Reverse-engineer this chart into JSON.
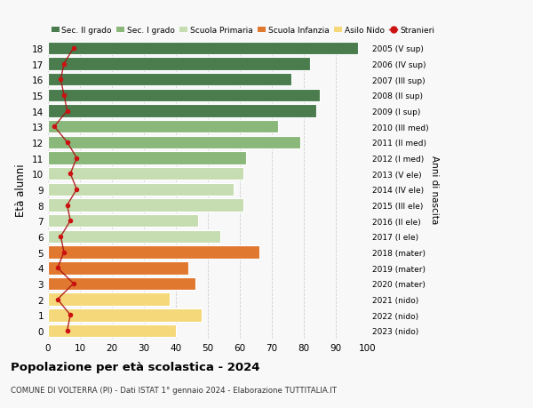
{
  "title": "Popolazione per età scolastica - 2024",
  "subtitle": "COMUNE DI VOLTERRA (PI) - Dati ISTAT 1° gennaio 2024 - Elaborazione TUTTITALIA.IT",
  "ylabel": "Età alunni",
  "right_ylabel": "Anni di nascita",
  "xlim": [
    0,
    100
  ],
  "xticks": [
    0,
    10,
    20,
    30,
    40,
    50,
    60,
    70,
    80,
    90,
    100
  ],
  "ages": [
    18,
    17,
    16,
    15,
    14,
    13,
    12,
    11,
    10,
    9,
    8,
    7,
    6,
    5,
    4,
    3,
    2,
    1,
    0
  ],
  "bar_values": [
    97,
    82,
    76,
    85,
    84,
    72,
    79,
    62,
    61,
    58,
    61,
    47,
    54,
    66,
    44,
    46,
    38,
    48,
    40
  ],
  "bar_colors": [
    "#4a7c4e",
    "#4a7c4e",
    "#4a7c4e",
    "#4a7c4e",
    "#4a7c4e",
    "#8ab87a",
    "#8ab87a",
    "#8ab87a",
    "#c5ddb0",
    "#c5ddb0",
    "#c5ddb0",
    "#c5ddb0",
    "#c5ddb0",
    "#e07830",
    "#e07830",
    "#e07830",
    "#f5d87a",
    "#f5d87a",
    "#f5d87a"
  ],
  "right_labels": [
    "2005 (V sup)",
    "2006 (IV sup)",
    "2007 (III sup)",
    "2008 (II sup)",
    "2009 (I sup)",
    "2010 (III med)",
    "2011 (II med)",
    "2012 (I med)",
    "2013 (V ele)",
    "2014 (IV ele)",
    "2015 (III ele)",
    "2016 (II ele)",
    "2017 (I ele)",
    "2018 (mater)",
    "2019 (mater)",
    "2020 (mater)",
    "2021 (nido)",
    "2022 (nido)",
    "2023 (nido)"
  ],
  "stranieri_values": [
    8,
    5,
    4,
    5,
    6,
    2,
    6,
    9,
    7,
    9,
    6,
    7,
    4,
    5,
    3,
    8,
    3,
    7,
    6
  ],
  "legend_labels": [
    "Sec. II grado",
    "Sec. I grado",
    "Scuola Primaria",
    "Scuola Infanzia",
    "Asilo Nido",
    "Stranieri"
  ],
  "legend_colors": [
    "#4a7c4e",
    "#8ab87a",
    "#c5ddb0",
    "#e07830",
    "#f5d87a",
    "#cc1111"
  ],
  "bg_color": "#f8f8f8",
  "grid_color": "#cccccc"
}
